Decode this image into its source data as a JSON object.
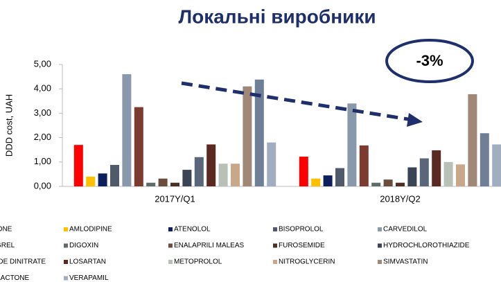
{
  "chart_data": {
    "type": "bar",
    "title": "Локальні виробники",
    "ylabel": "DDD cost, UAH",
    "annotation": "-3%",
    "categories": [
      "2017Y/Q1",
      "2018Y/Q2"
    ],
    "ylim": [
      0,
      5
    ],
    "yticks": [
      {
        "value": 0,
        "label": "0,00"
      },
      {
        "value": 1,
        "label": "1,00"
      },
      {
        "value": 2,
        "label": "2,00"
      },
      {
        "value": 3,
        "label": "3,00"
      },
      {
        "value": 4,
        "label": "4,00"
      },
      {
        "value": 5,
        "label": "5,00"
      }
    ],
    "legend": "bottom",
    "series": [
      {
        "name": "AMIODARONE",
        "color": "#ff0000",
        "values": [
          1.7,
          1.22
        ]
      },
      {
        "name": "AMLODIPINE",
        "color": "#ffc000",
        "values": [
          0.4,
          0.32
        ]
      },
      {
        "name": "ATENOLOL",
        "color": "#0d1f5c",
        "values": [
          0.53,
          0.45
        ]
      },
      {
        "name": "BISOPROLOL",
        "color": "#4f5b6b",
        "values": [
          0.88,
          0.75
        ]
      },
      {
        "name": "CARVEDILOL",
        "color": "#8a98ac",
        "values": [
          4.6,
          3.4
        ]
      },
      {
        "name": "CLOPIDOGREL",
        "color": "#7b3b30",
        "values": [
          3.25,
          1.68
        ]
      },
      {
        "name": "DIGOXIN",
        "color": "#5f6b6b",
        "values": [
          0.15,
          0.15
        ]
      },
      {
        "name": "ENALAPRILI MALEAS",
        "color": "#6b4e3b",
        "values": [
          0.32,
          0.28
        ]
      },
      {
        "name": "FUROSEMIDE",
        "color": "#4a3025",
        "values": [
          0.15,
          0.15
        ]
      },
      {
        "name": "HYDROCHLOROTHIAZIDE",
        "color": "#3a4455",
        "values": [
          0.68,
          0.78
        ]
      },
      {
        "name": "ISOSORBIDE DINITRATE",
        "color": "#5a677a",
        "values": [
          1.2,
          1.15
        ]
      },
      {
        "name": "LOSARTAN",
        "color": "#5a2a22",
        "values": [
          1.72,
          1.48
        ]
      },
      {
        "name": "METOPROLOL",
        "color": "#b8c0b8",
        "values": [
          0.93,
          1.0
        ]
      },
      {
        "name": "NITROGLYCERIN",
        "color": "#c8a888",
        "values": [
          0.93,
          0.9
        ]
      },
      {
        "name": "SIMVASTATIN",
        "color": "#a08878",
        "values": [
          4.1,
          3.78
        ]
      },
      {
        "name": "SPIRONOLACTONE",
        "color": "#6f7f95",
        "values": [
          4.38,
          2.18
        ]
      },
      {
        "name": "VERAPAMIL",
        "color": "#a0aec0",
        "values": [
          1.8,
          1.72
        ]
      }
    ]
  }
}
